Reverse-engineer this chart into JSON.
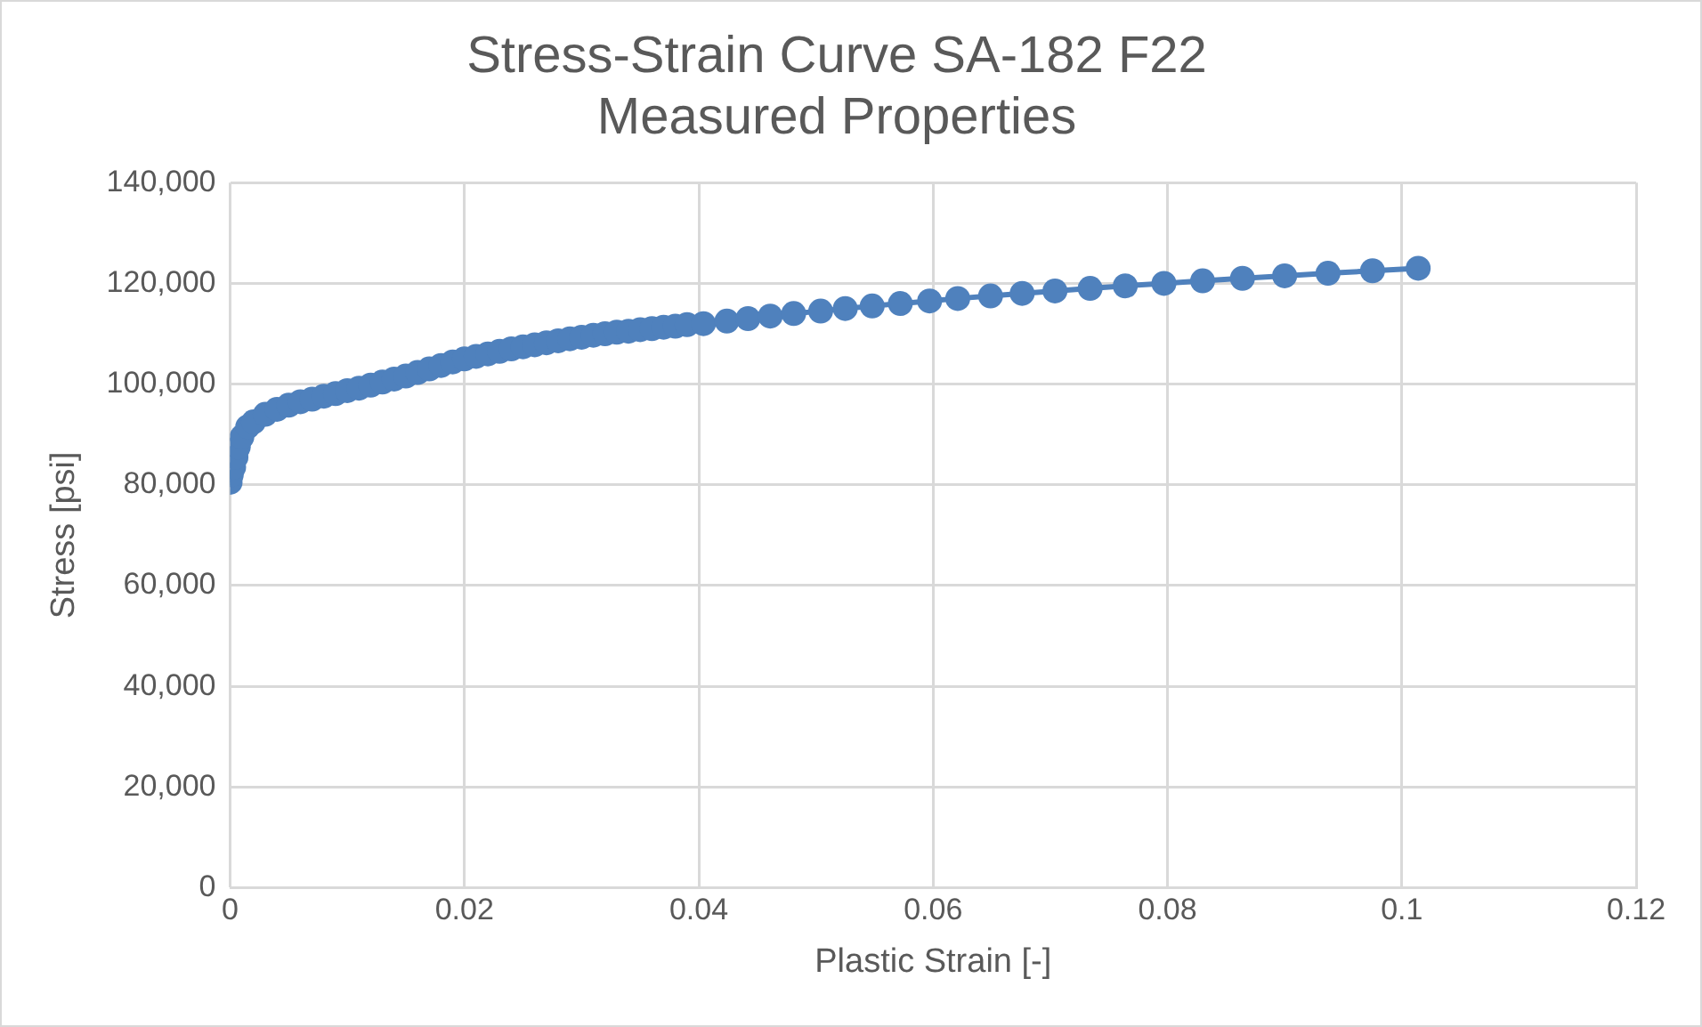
{
  "chart_data": {
    "type": "line",
    "title": "Stress-Strain Curve SA-182 F22",
    "subtitle": "Measured Properties",
    "xlabel": "Plastic Strain [-]",
    "ylabel": "Stress [psi]",
    "x": [
      0,
      0.0001,
      0.0003,
      0.0005,
      0.0007,
      0.001,
      0.0015,
      0.002,
      0.003,
      0.004,
      0.005,
      0.006,
      0.007,
      0.008,
      0.009,
      0.01,
      0.011,
      0.012,
      0.013,
      0.014,
      0.015,
      0.016,
      0.017,
      0.018,
      0.019,
      0.02,
      0.021,
      0.022,
      0.023,
      0.024,
      0.025,
      0.026,
      0.027,
      0.028,
      0.029,
      0.03,
      0.031,
      0.032,
      0.033,
      0.034,
      0.035,
      0.036,
      0.037,
      0.038,
      0.039,
      0.0404,
      0.0424,
      0.0442,
      0.0461,
      0.0481,
      0.0504,
      0.0525,
      0.0548,
      0.0572,
      0.0597,
      0.0621,
      0.0649,
      0.0676,
      0.0704,
      0.0734,
      0.0764,
      0.0797,
      0.083,
      0.0864,
      0.09,
      0.0937,
      0.0975,
      0.1014
    ],
    "series": [
      {
        "color": "#4f81bd",
        "values": [
          80500,
          82000,
          83500,
          85500,
          87500,
          89500,
          91500,
          92500,
          94000,
          95000,
          95800,
          96500,
          97000,
          97600,
          98100,
          98700,
          99200,
          99800,
          100400,
          101000,
          101600,
          102300,
          103000,
          103700,
          104400,
          105000,
          105500,
          106000,
          106500,
          107000,
          107400,
          107800,
          108200,
          108600,
          109000,
          109300,
          109700,
          110000,
          110300,
          110500,
          110800,
          111000,
          111300,
          111500,
          111800,
          112000,
          112500,
          113000,
          113500,
          114000,
          114500,
          115000,
          115500,
          116000,
          116500,
          117000,
          117500,
          118000,
          118500,
          119000,
          119500,
          120000,
          120500,
          121000,
          121500,
          122000,
          122500,
          123000
        ]
      }
    ],
    "xlim": [
      0,
      0.12
    ],
    "xticks": [
      0,
      0.02,
      0.04,
      0.06,
      0.08,
      0.1,
      0.12
    ],
    "ylim": [
      0,
      140000
    ],
    "yticks": [
      {
        "value": 0,
        "label": "0"
      },
      {
        "value": 20000,
        "label": "20,000"
      },
      {
        "value": 40000,
        "label": "40,000"
      },
      {
        "value": 60000,
        "label": "60,000"
      },
      {
        "value": 80000,
        "label": "80,000"
      },
      {
        "value": 100000,
        "label": "100,000"
      },
      {
        "value": 120000,
        "label": "120,000"
      },
      {
        "value": 140000,
        "label": "140,000"
      }
    ],
    "grid": true,
    "legend": false,
    "marker": "circle",
    "line_style": "solid"
  }
}
